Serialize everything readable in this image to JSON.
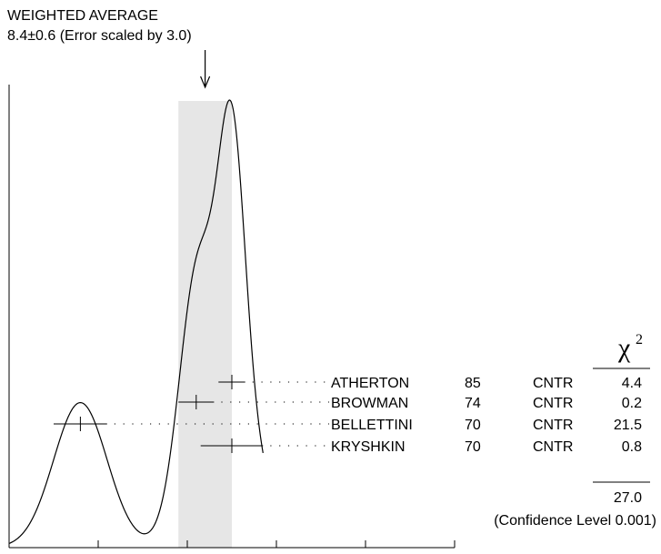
{
  "chart_data": {
    "type": "ideogram",
    "title_line1": "WEIGHTED AVERAGE",
    "title_line2": "8.4±0.6 (Error scaled by 3.0)",
    "weighted_average": 8.4,
    "weighted_error": 0.6,
    "xlim": [
      4,
      14
    ],
    "x_ticks": [
      "4",
      "6",
      "8",
      "10",
      "12",
      "14"
    ],
    "x_tick_values": [
      4,
      6,
      8,
      10,
      12,
      14
    ],
    "chi2_label": "χ",
    "chi2_exponent": "2",
    "measurements": [
      {
        "value": 9.0,
        "error": 0.3,
        "author": "ATHERTON",
        "year": "85",
        "technique": "CNTR",
        "chi2": "4.4"
      },
      {
        "value": 8.2,
        "error": 0.4,
        "author": "BROWMAN",
        "year": "74",
        "technique": "CNTR",
        "chi2": "0.2"
      },
      {
        "value": 5.6,
        "error": 0.6,
        "author": "BELLETTINI",
        "year": "70",
        "technique": "CNTR",
        "chi2": "21.5"
      },
      {
        "value": 9.0,
        "error": 0.7,
        "author": "KRYSHKIN",
        "year": "70",
        "technique": "CNTR",
        "chi2": "0.8"
      }
    ],
    "chi2_total": "27.0",
    "confidence_level": "(Confidence Level  0.001)"
  }
}
